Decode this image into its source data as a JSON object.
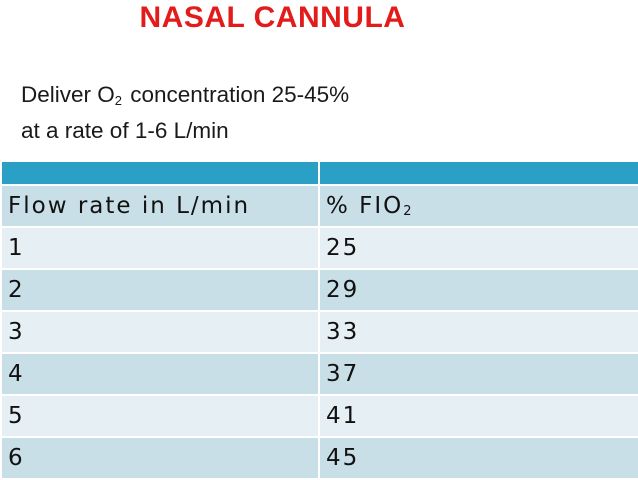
{
  "title": "NASAL CANNULA",
  "description": {
    "line1_before": "Deliver O",
    "line1_sub": "2",
    "line1_after": " concentration 25-45%",
    "line2": "at a rate of 1-6 L/min"
  },
  "table": {
    "header": [
      "",
      ""
    ],
    "column_labels": {
      "flow": "Flow rate in L/min",
      "fio_prefix": "% FIO",
      "fio_sub": "2"
    },
    "rows": [
      {
        "flow": "1",
        "fio": "25"
      },
      {
        "flow": "2",
        "fio": "29"
      },
      {
        "flow": "3",
        "fio": "33"
      },
      {
        "flow": "4",
        "fio": "37"
      },
      {
        "flow": "5",
        "fio": "41"
      },
      {
        "flow": "6",
        "fio": "45"
      }
    ]
  },
  "colors": {
    "title": "#e21b1b",
    "header": "#2ba0c7",
    "row_dark": "#c9dfe7",
    "row_light": "#e6eff3"
  }
}
